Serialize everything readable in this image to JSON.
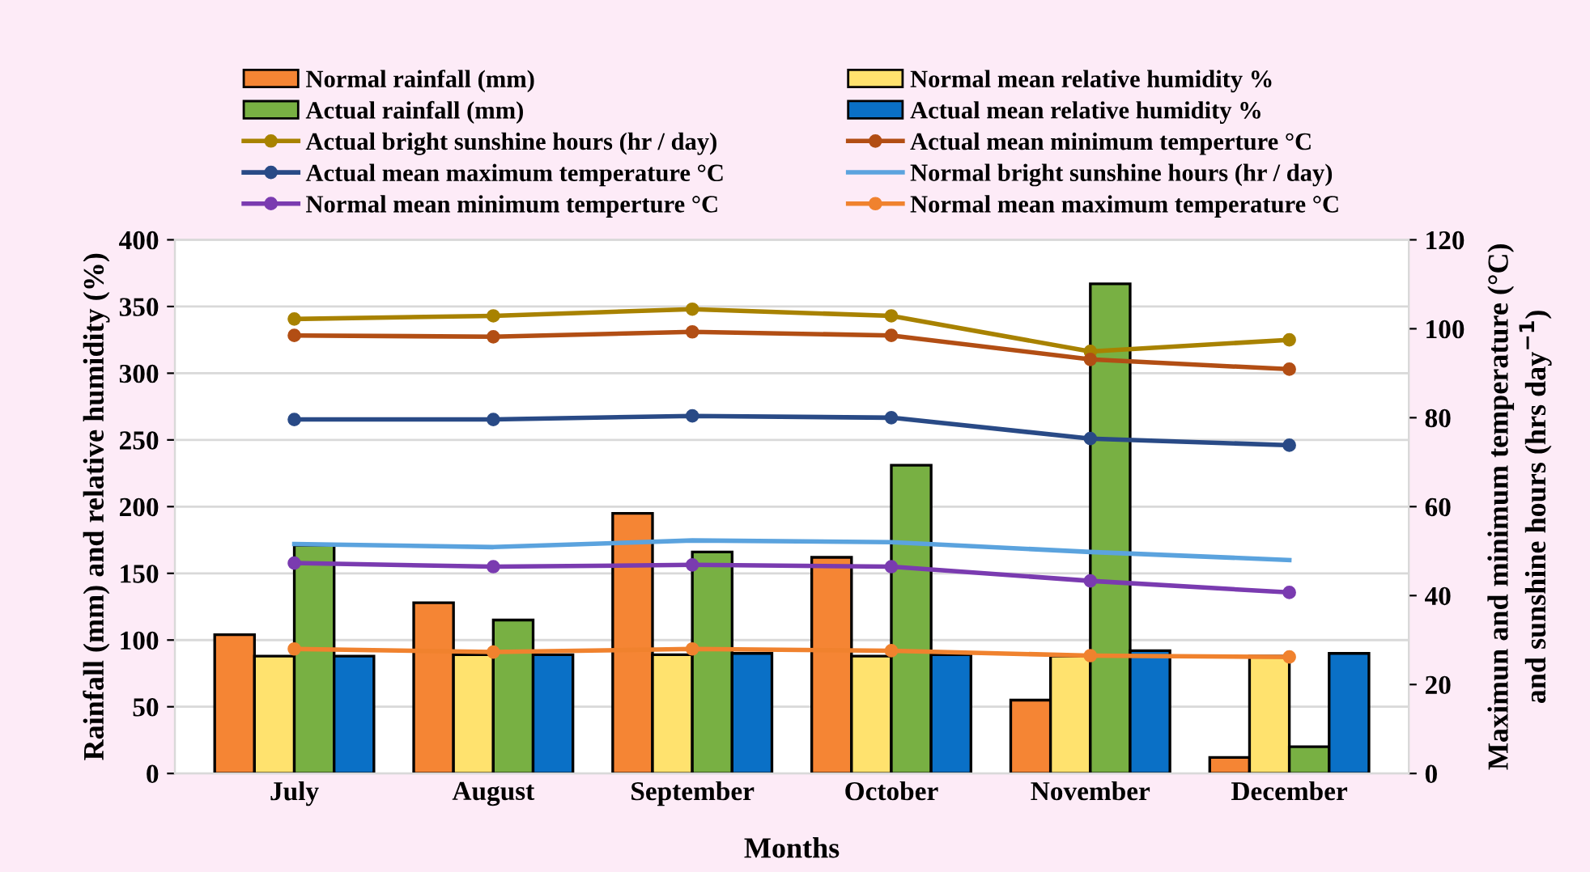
{
  "chart_data": {
    "type": "bar",
    "xlabel": "Months",
    "ylabel": "Rainfall (mm) and relative humidity (%)",
    "y2label": "Maximun and minimum temperature (°C)\nand sunshine hours (hrs day$^{−1}$)",
    "categories": [
      "July",
      "August",
      "September",
      "October",
      "November",
      "December"
    ],
    "series": [
      {
        "name": "Normal rainfall (mm)",
        "color": "#f58534",
        "values": [
          104,
          128,
          195,
          162,
          55,
          12
        ]
      },
      {
        "name": "Normal mean relative humidity %",
        "color": "#ffe26e",
        "values": [
          88,
          89,
          89,
          88,
          88,
          88
        ]
      },
      {
        "name": "Actual rainfall (mm)",
        "color": "#78b043",
        "values": [
          171,
          115,
          166,
          231,
          367,
          20
        ]
      },
      {
        "name": "Actual mean relative humidity %",
        "color": "#0a70c6",
        "values": [
          88,
          89,
          90,
          89,
          92,
          90
        ]
      },
      {
        "name": "Actual bright sunshine hours (hr / day)",
        "type": "line",
        "axis": "y2",
        "marker": "circle",
        "color": "#a88200",
        "values": [
          102.2,
          102.9,
          104.4,
          102.9,
          94.9,
          97.5
        ]
      },
      {
        "name": "Actual mean minimum temperture °C",
        "type": "line",
        "axis": "y2",
        "marker": "circle",
        "color": "#b24e14",
        "values": [
          98.5,
          98.2,
          99.3,
          98.5,
          93.1,
          90.9
        ]
      },
      {
        "name": "Actual mean maximum temperature °C",
        "type": "line",
        "axis": "y2",
        "marker": "circle",
        "color": "#294a86",
        "values": [
          79.6,
          79.6,
          80.4,
          80,
          75.3,
          73.8
        ]
      },
      {
        "name": "Normal bright sunshine hours (hr / day)",
        "type": "line",
        "axis": "y2",
        "marker": "none",
        "color": "#5ba3de",
        "values": [
          51.6,
          50.9,
          52.4,
          52,
          49.8,
          48
        ]
      },
      {
        "name": "Normal mean minimum temperture °C",
        "type": "line",
        "axis": "y2",
        "marker": "circle",
        "color": "#7a3bb0",
        "values": [
          47.3,
          46.5,
          46.9,
          46.5,
          43.3,
          40.7
        ]
      },
      {
        "name": "Normal mean maximum temperature °C",
        "type": "line",
        "axis": "y2",
        "marker": "circle",
        "color": "#f0822e",
        "values": [
          28,
          27.3,
          28,
          27.6,
          26.5,
          26.2
        ]
      }
    ],
    "ylim": [
      0,
      400
    ],
    "yticks": [
      0,
      50,
      100,
      150,
      200,
      250,
      300,
      350,
      400
    ],
    "y2lim": [
      0,
      120
    ],
    "y2ticks": [
      0,
      20,
      40,
      60,
      80,
      100,
      120
    ],
    "grid": "y",
    "legend": "top"
  }
}
